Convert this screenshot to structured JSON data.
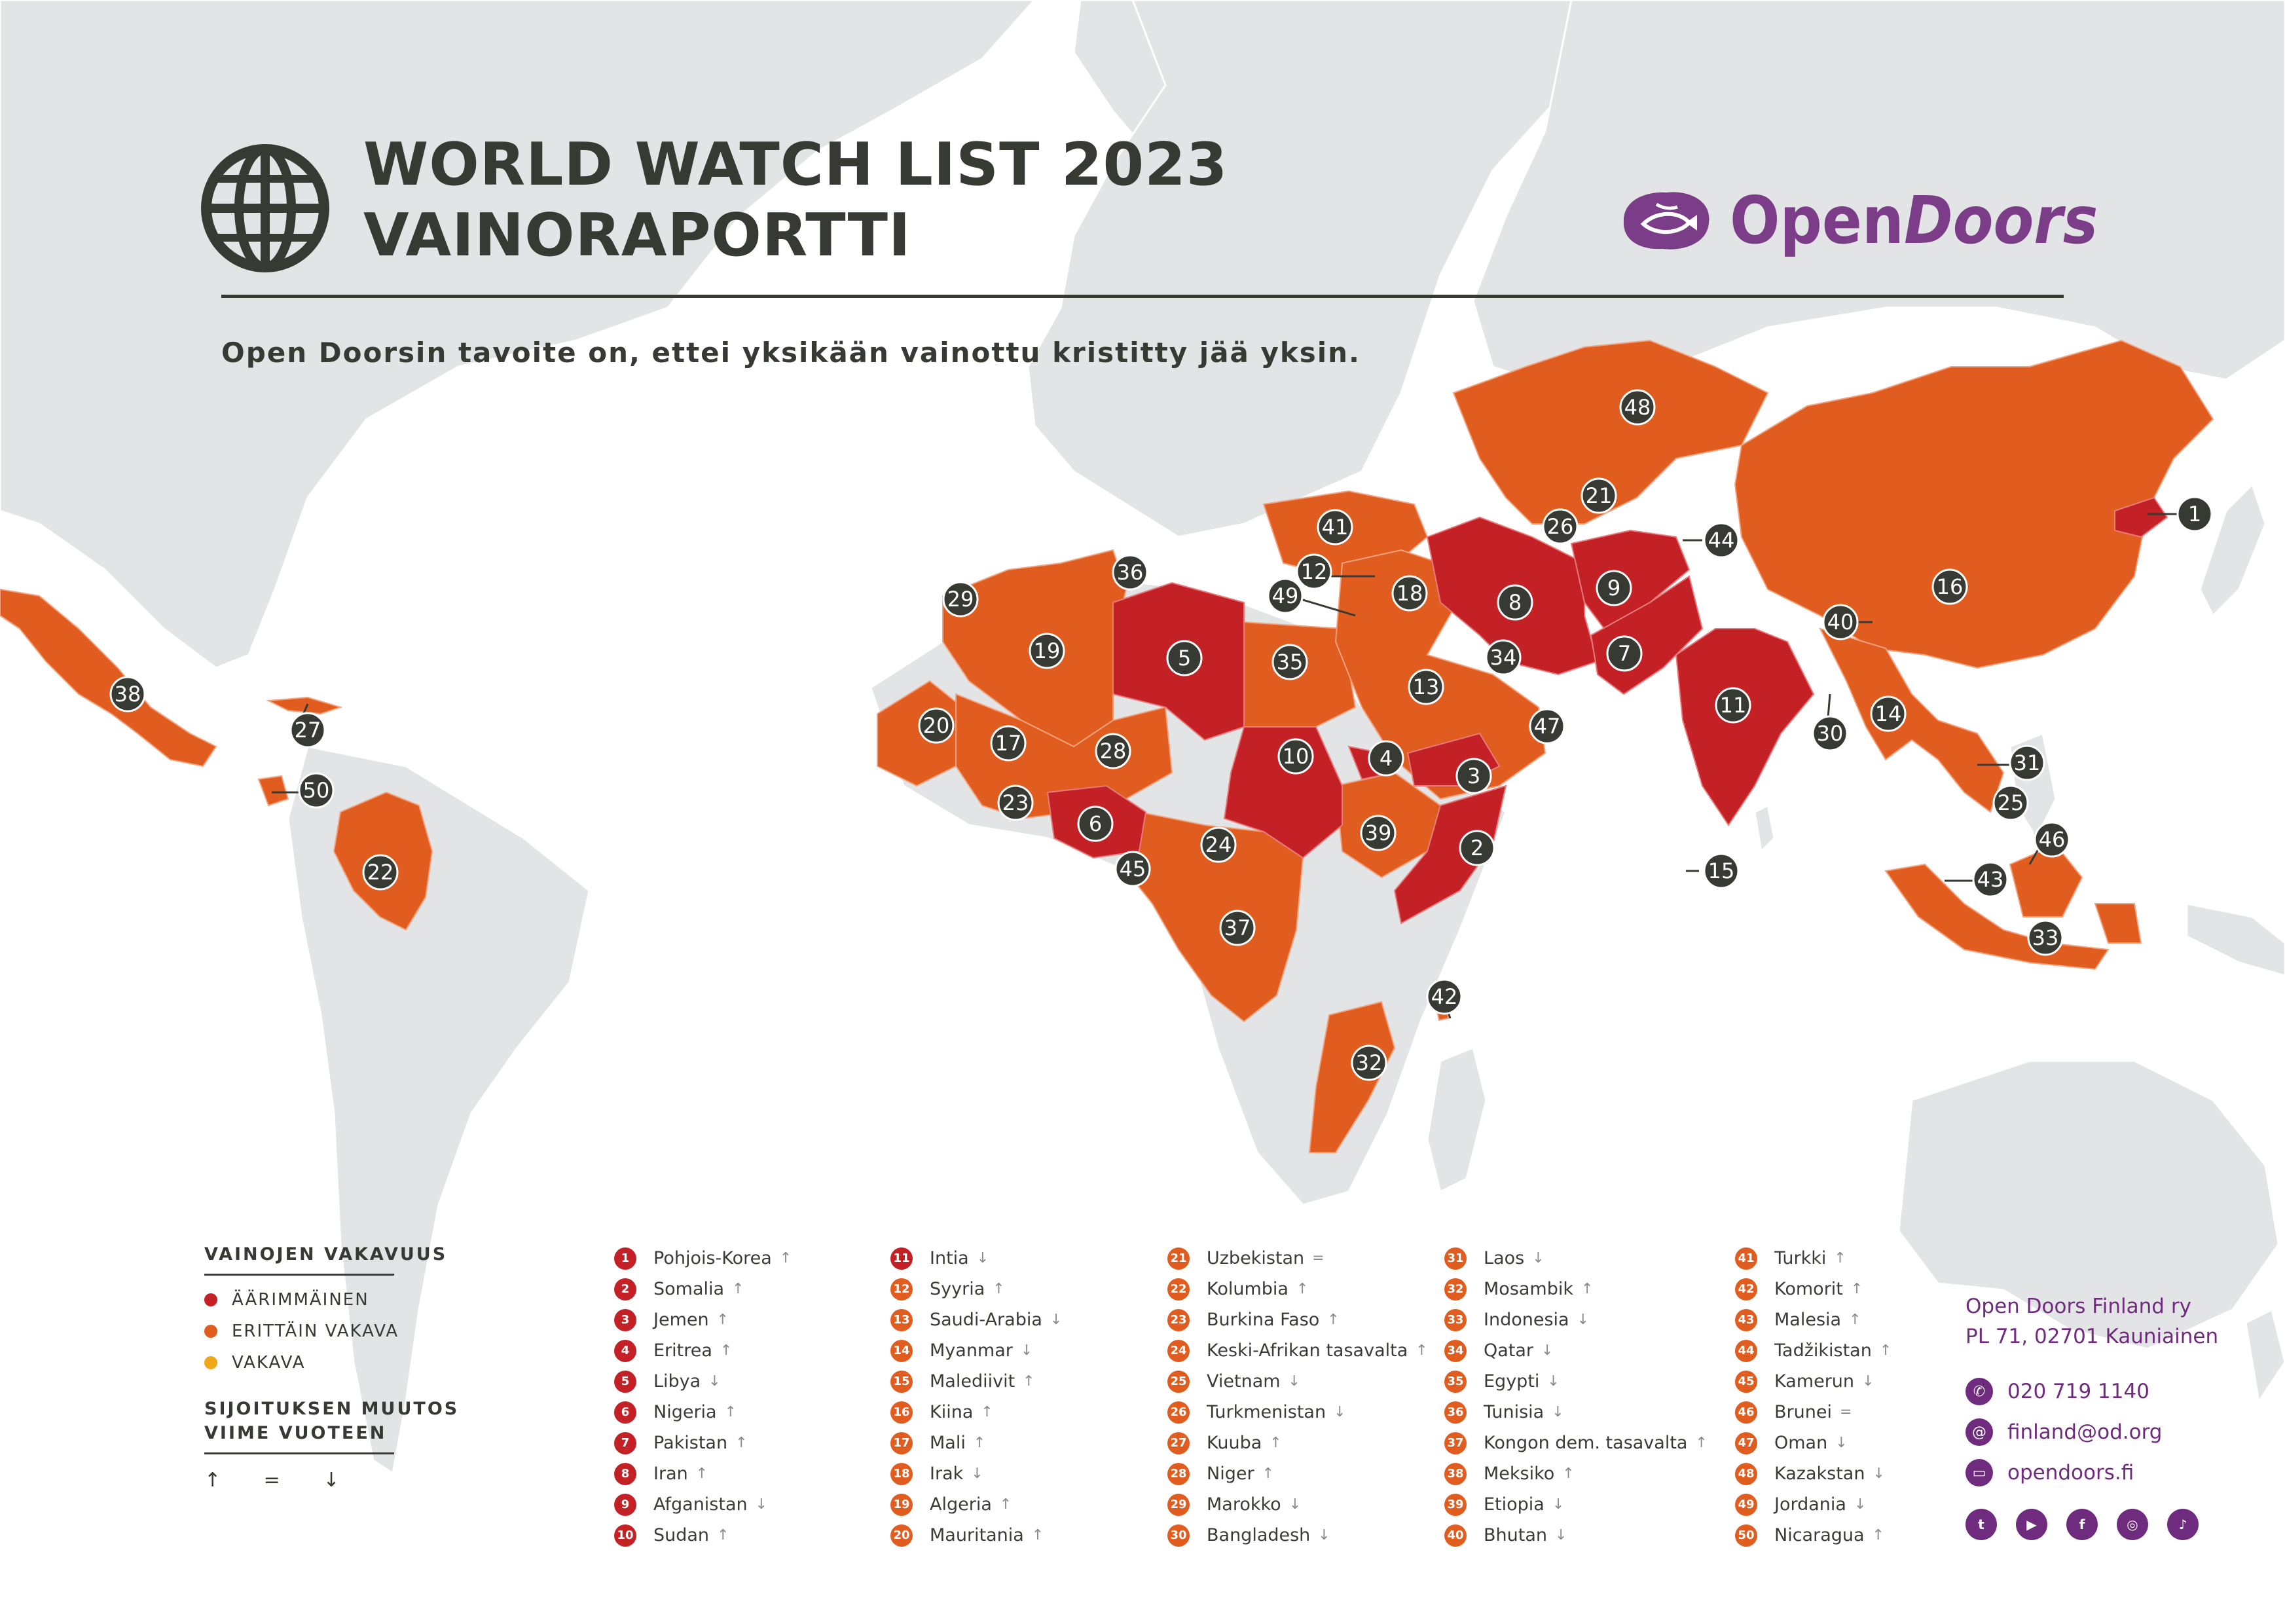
{
  "title": {
    "line1": "WORLD WATCH LIST 2023",
    "line2": "VAINORAPORTTI"
  },
  "brand": {
    "name_part1": "Open",
    "name_part2": "Doors",
    "icon": "open-doors-fish-logo"
  },
  "tagline": "Open Doorsin tavoite on, ettei yksikään vainottu kristitty jää yksin.",
  "colors": {
    "extreme": "#c42127",
    "very_high": "#e05c1f",
    "high": "#f0a71a",
    "land": "#e3e4e5",
    "marker": "#363a33",
    "brand": "#6f2b7d"
  },
  "legend": {
    "severity_title": "VAINOJEN VAKAVUUS",
    "levels": [
      {
        "label": "ÄÄRIMMÄINEN",
        "color": "#c42127"
      },
      {
        "label": "ERITTÄIN VAKAVA",
        "color": "#e05c1f"
      },
      {
        "label": "VAKAVA",
        "color": "#f0a71a"
      }
    ],
    "change_title_line1": "SIJOITUKSEN MUUTOS",
    "change_title_line2": "VIIME VUOTEEN",
    "change_symbols": "↑ = ↓"
  },
  "rankings": [
    {
      "rank": "1",
      "country": "Pohjois-Korea",
      "trend": "↑",
      "level": "extreme"
    },
    {
      "rank": "2",
      "country": "Somalia",
      "trend": "↑",
      "level": "extreme"
    },
    {
      "rank": "3",
      "country": "Jemen",
      "trend": "↑",
      "level": "extreme"
    },
    {
      "rank": "4",
      "country": "Eritrea",
      "trend": "↑",
      "level": "extreme"
    },
    {
      "rank": "5",
      "country": "Libya",
      "trend": "↓",
      "level": "extreme"
    },
    {
      "rank": "6",
      "country": "Nigeria",
      "trend": "↑",
      "level": "extreme"
    },
    {
      "rank": "7",
      "country": "Pakistan",
      "trend": "↑",
      "level": "extreme"
    },
    {
      "rank": "8",
      "country": "Iran",
      "trend": "↑",
      "level": "extreme"
    },
    {
      "rank": "9",
      "country": "Afganistan",
      "trend": "↓",
      "level": "extreme"
    },
    {
      "rank": "10",
      "country": "Sudan",
      "trend": "↑",
      "level": "extreme"
    },
    {
      "rank": "11",
      "country": "Intia",
      "trend": "↓",
      "level": "extreme"
    },
    {
      "rank": "12",
      "country": "Syyria",
      "trend": "↑",
      "level": "very-high"
    },
    {
      "rank": "13",
      "country": "Saudi-Arabia",
      "trend": "↓",
      "level": "very-high"
    },
    {
      "rank": "14",
      "country": "Myanmar",
      "trend": "↓",
      "level": "very-high"
    },
    {
      "rank": "15",
      "country": "Malediivit",
      "trend": "↑",
      "level": "very-high"
    },
    {
      "rank": "16",
      "country": "Kiina",
      "trend": "↑",
      "level": "very-high"
    },
    {
      "rank": "17",
      "country": "Mali",
      "trend": "↑",
      "level": "very-high"
    },
    {
      "rank": "18",
      "country": "Irak",
      "trend": "↓",
      "level": "very-high"
    },
    {
      "rank": "19",
      "country": "Algeria",
      "trend": "↑",
      "level": "very-high"
    },
    {
      "rank": "20",
      "country": "Mauritania",
      "trend": "↑",
      "level": "very-high"
    },
    {
      "rank": "21",
      "country": "Uzbekistan",
      "trend": "=",
      "level": "very-high"
    },
    {
      "rank": "22",
      "country": "Kolumbia",
      "trend": "↑",
      "level": "very-high"
    },
    {
      "rank": "23",
      "country": "Burkina Faso",
      "trend": "↑",
      "level": "very-high"
    },
    {
      "rank": "24",
      "country": "Keski-Afrikan tasavalta",
      "trend": "↑",
      "level": "very-high"
    },
    {
      "rank": "25",
      "country": "Vietnam",
      "trend": "↓",
      "level": "very-high"
    },
    {
      "rank": "26",
      "country": "Turkmenistan",
      "trend": "↓",
      "level": "very-high"
    },
    {
      "rank": "27",
      "country": "Kuuba",
      "trend": "↑",
      "level": "very-high"
    },
    {
      "rank": "28",
      "country": "Niger",
      "trend": "↑",
      "level": "very-high"
    },
    {
      "rank": "29",
      "country": "Marokko",
      "trend": "↓",
      "level": "very-high"
    },
    {
      "rank": "30",
      "country": "Bangladesh",
      "trend": "↓",
      "level": "very-high"
    },
    {
      "rank": "31",
      "country": "Laos",
      "trend": "↓",
      "level": "very-high"
    },
    {
      "rank": "32",
      "country": "Mosambik",
      "trend": "↑",
      "level": "very-high"
    },
    {
      "rank": "33",
      "country": "Indonesia",
      "trend": "↓",
      "level": "very-high"
    },
    {
      "rank": "34",
      "country": "Qatar",
      "trend": "↓",
      "level": "very-high"
    },
    {
      "rank": "35",
      "country": "Egypti",
      "trend": "↓",
      "level": "very-high"
    },
    {
      "rank": "36",
      "country": "Tunisia",
      "trend": "↓",
      "level": "very-high"
    },
    {
      "rank": "37",
      "country": "Kongon dem. tasavalta",
      "trend": "↑",
      "level": "very-high"
    },
    {
      "rank": "38",
      "country": "Meksiko",
      "trend": "↑",
      "level": "very-high"
    },
    {
      "rank": "39",
      "country": "Etiopia",
      "trend": "↓",
      "level": "very-high"
    },
    {
      "rank": "40",
      "country": "Bhutan",
      "trend": "↓",
      "level": "very-high"
    },
    {
      "rank": "41",
      "country": "Turkki",
      "trend": "↑",
      "level": "very-high"
    },
    {
      "rank": "42",
      "country": "Komorit",
      "trend": "↑",
      "level": "very-high"
    },
    {
      "rank": "43",
      "country": "Malesia",
      "trend": "↑",
      "level": "very-high"
    },
    {
      "rank": "44",
      "country": "Tadžikistan",
      "trend": "↑",
      "level": "very-high"
    },
    {
      "rank": "45",
      "country": "Kamerun",
      "trend": "↓",
      "level": "very-high"
    },
    {
      "rank": "46",
      "country": "Brunei",
      "trend": "=",
      "level": "very-high"
    },
    {
      "rank": "47",
      "country": "Oman",
      "trend": "↓",
      "level": "very-high"
    },
    {
      "rank": "48",
      "country": "Kazakstan",
      "trend": "↓",
      "level": "very-high"
    },
    {
      "rank": "49",
      "country": "Jordania",
      "trend": "↓",
      "level": "very-high"
    },
    {
      "rank": "50",
      "country": "Nicaragua",
      "trend": "↑",
      "level": "very-high"
    }
  ],
  "contact": {
    "org_line1": "Open Doors Finland ry",
    "org_line2": "PL 71, 02701 Kauniainen",
    "phone": "020 719 1140",
    "email": "finland@od.org",
    "web": "opendoors.fi",
    "social_icons": [
      "twitter-icon",
      "youtube-icon",
      "facebook-icon",
      "instagram-icon",
      "tiktok-icon"
    ]
  },
  "map_markers": [
    "1",
    "2",
    "3",
    "4",
    "5",
    "6",
    "7",
    "8",
    "9",
    "10",
    "11",
    "12",
    "13",
    "14",
    "15",
    "16",
    "17",
    "18",
    "19",
    "20",
    "21",
    "22",
    "23",
    "24",
    "25",
    "26",
    "27",
    "28",
    "29",
    "30",
    "31",
    "32",
    "33",
    "34",
    "35",
    "36",
    "37",
    "38",
    "39",
    "40",
    "41",
    "42",
    "43",
    "44",
    "45",
    "46",
    "47",
    "48",
    "49",
    "50"
  ]
}
